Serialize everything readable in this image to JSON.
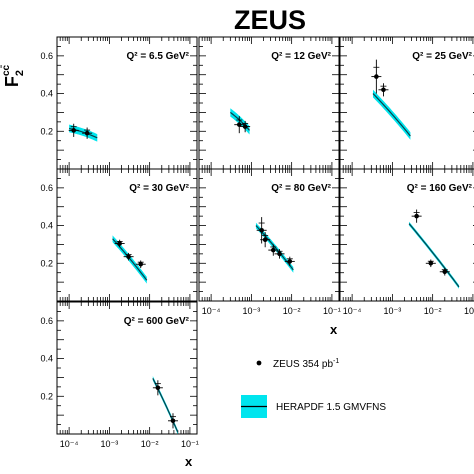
{
  "figure": {
    "title": "ZEUS",
    "ylabel_main": "F",
    "ylabel_sub": "2",
    "ylabel_sup": "cc̄",
    "xlabel": "x"
  },
  "legend": {
    "data_label": "ZEUS 354 pb",
    "data_sup": "-1",
    "band_label": "HERAPDF 1.5 GMVFNS",
    "band_color": "#00e5ee"
  },
  "chart_data": {
    "type": "scatter",
    "x_scale": "log",
    "xlim": [
      5e-05,
      0.15
    ],
    "ylim": [
      0,
      0.7
    ],
    "x_ticks": [
      "10⁻⁴",
      "10⁻³",
      "10⁻²",
      "10⁻¹"
    ],
    "y_ticks": [
      "0.2",
      "0.4",
      "0.6"
    ],
    "y_tick_values": [
      0.2,
      0.4,
      0.6
    ],
    "panels": [
      {
        "q2_label": "Q² = 6.5 GeV²",
        "points": [
          {
            "x": 0.00013,
            "y": 0.205,
            "err": 0.035
          },
          {
            "x": 0.00028,
            "y": 0.19,
            "err": 0.03
          }
        ],
        "band": {
          "x": [
            0.0001,
            0.0005
          ],
          "center": [
            0.215,
            0.165
          ],
          "halfwidth": 0.02
        }
      },
      {
        "q2_label": "Q² = 12 GeV²",
        "points": [
          {
            "x": 0.0005,
            "y": 0.235,
            "err": 0.045
          },
          {
            "x": 0.0007,
            "y": 0.225,
            "err": 0.03
          }
        ],
        "band": {
          "x": [
            0.0003,
            0.0009
          ],
          "center": [
            0.3,
            0.205
          ],
          "halfwidth": 0.022
        }
      },
      {
        "q2_label": "Q² = 25 GeV²",
        "points": [
          {
            "x": 0.0004,
            "y": 0.49,
            "err": 0.09
          },
          {
            "x": 0.0006,
            "y": 0.42,
            "err": 0.035
          }
        ],
        "band": {
          "x": [
            0.00033,
            0.0028
          ],
          "center": [
            0.4,
            0.175
          ],
          "halfwidth": 0.02
        }
      },
      {
        "q2_label": "Q² = 30 GeV²",
        "points": [
          {
            "x": 0.0018,
            "y": 0.305,
            "err": 0.02
          },
          {
            "x": 0.003,
            "y": 0.235,
            "err": 0.02
          },
          {
            "x": 0.006,
            "y": 0.195,
            "err": 0.02
          }
        ],
        "band": {
          "x": [
            0.0012,
            0.0085
          ],
          "center": [
            0.33,
            0.11
          ],
          "halfwidth": 0.018
        }
      },
      {
        "q2_label": "Q² = 80 GeV²",
        "points": [
          {
            "x": 0.0018,
            "y": 0.375,
            "err": 0.07
          },
          {
            "x": 0.0022,
            "y": 0.325,
            "err": 0.04
          },
          {
            "x": 0.0035,
            "y": 0.27,
            "err": 0.03
          },
          {
            "x": 0.005,
            "y": 0.25,
            "err": 0.025
          },
          {
            "x": 0.009,
            "y": 0.21,
            "err": 0.025
          }
        ],
        "band": {
          "x": [
            0.0013,
            0.011
          ],
          "center": [
            0.4,
            0.165
          ],
          "halfwidth": 0.015
        }
      },
      {
        "q2_label": "Q² = 160 GeV²",
        "points": [
          {
            "x": 0.004,
            "y": 0.45,
            "err": 0.035
          },
          {
            "x": 0.009,
            "y": 0.2,
            "err": 0.02
          },
          {
            "x": 0.02,
            "y": 0.155,
            "err": 0.02
          }
        ],
        "band": {
          "x": [
            0.0026,
            0.045
          ],
          "center": [
            0.41,
            0.075
          ],
          "halfwidth": 0.01
        }
      },
      {
        "q2_label": "Q² = 600 GeV²",
        "points": [
          {
            "x": 0.016,
            "y": 0.245,
            "err": 0.04
          },
          {
            "x": 0.038,
            "y": 0.07,
            "err": 0.04
          }
        ],
        "band": {
          "x": [
            0.012,
            0.05
          ],
          "center": [
            0.295,
            0.01
          ],
          "halfwidth": 0.012
        }
      }
    ]
  }
}
